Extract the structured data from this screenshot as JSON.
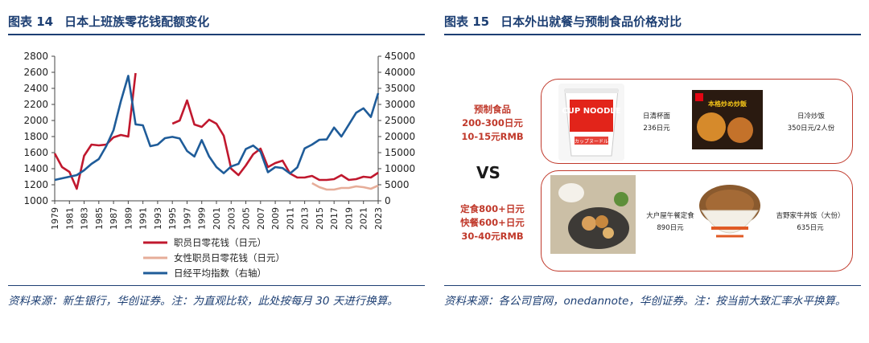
{
  "left": {
    "fig_label": "图表 14",
    "title": "日本上班族零花钱配额变化",
    "source": "资料来源：新生银行，华创证券。注：为直观比较，此处按每月 30 天进行换算。"
  },
  "right": {
    "fig_label": "图表 15",
    "title": "日本外出就餐与预制食品价格对比",
    "source": "资料来源：各公司官网，onedannote，华创证券。注：按当前大致汇率水平换算。",
    "vs": "VS",
    "category_top": [
      "预制食品",
      "200-300日元",
      "10-15元RMB"
    ],
    "category_bottom": [
      "定食800+日元",
      "快餐600+日元",
      "30-40元RMB"
    ],
    "products": [
      {
        "name": "日清杯面",
        "price": "236日元",
        "logo": "CUP NOODLE",
        "sub": "カップヌードル"
      },
      {
        "name": "日冷炒饭",
        "price": "350日元/2人份",
        "logo": "本格炒め炒飯"
      },
      {
        "name": "大户屋午餐定食",
        "price": "890日元"
      },
      {
        "name": "吉野家牛丼饭（大份）",
        "price": "635日元"
      }
    ]
  },
  "chart_data": {
    "type": "line",
    "x": [
      1979,
      1980,
      1981,
      1982,
      1983,
      1984,
      1985,
      1986,
      1987,
      1988,
      1989,
      1990,
      1991,
      1992,
      1993,
      1994,
      1995,
      1996,
      1997,
      1998,
      1999,
      2000,
      2001,
      2002,
      2003,
      2004,
      2005,
      2006,
      2007,
      2008,
      2009,
      2010,
      2011,
      2012,
      2013,
      2014,
      2015,
      2016,
      2017,
      2018,
      2019,
      2020,
      2021,
      2022,
      2023
    ],
    "xticks": [
      1979,
      1981,
      1983,
      1985,
      1987,
      1989,
      1991,
      1993,
      1995,
      1997,
      1999,
      2001,
      2003,
      2005,
      2007,
      2009,
      2011,
      2013,
      2015,
      2017,
      2019,
      2021,
      2023
    ],
    "ylim": [
      1000,
      2800
    ],
    "yticks": [
      1000,
      1200,
      1400,
      1600,
      1800,
      2000,
      2200,
      2400,
      2600,
      2800
    ],
    "y2lim": [
      0,
      45000
    ],
    "y2ticks": [
      0,
      5000,
      10000,
      15000,
      20000,
      25000,
      30000,
      35000,
      40000,
      45000
    ],
    "series": [
      {
        "name": "职员日零花钱（日元）",
        "axis": "left",
        "color": "#c0182e",
        "values": [
          1590,
          1420,
          1360,
          1150,
          1560,
          1700,
          1690,
          1700,
          1790,
          1820,
          1800,
          2590,
          null,
          null,
          null,
          null,
          1960,
          2000,
          2250,
          1950,
          1920,
          2010,
          1960,
          1810,
          1400,
          1320,
          1440,
          1580,
          1650,
          1420,
          1470,
          1500,
          1340,
          1290,
          1290,
          1310,
          1260,
          1260,
          1270,
          1320,
          1260,
          1270,
          1300,
          1290,
          1350
        ]
      },
      {
        "name": "女性职员日零花钱（日元）",
        "axis": "left",
        "color": "#e6ad99",
        "values": [
          null,
          null,
          null,
          null,
          null,
          null,
          null,
          null,
          null,
          null,
          null,
          null,
          null,
          null,
          null,
          null,
          null,
          null,
          null,
          null,
          null,
          null,
          null,
          null,
          null,
          null,
          null,
          null,
          null,
          null,
          null,
          null,
          null,
          null,
          null,
          1220,
          1170,
          1140,
          1140,
          1160,
          1160,
          1180,
          1170,
          1150,
          1190
        ]
      },
      {
        "name": "日经平均指数（右轴）",
        "axis": "right",
        "color": "#1f5c99",
        "values": [
          6500,
          7000,
          7500,
          8000,
          9500,
          11500,
          13000,
          17000,
          22000,
          31000,
          38900,
          23800,
          23500,
          17000,
          17500,
          19500,
          19900,
          19400,
          15500,
          13800,
          18900,
          13800,
          10500,
          8600,
          10700,
          11500,
          16100,
          17200,
          15300,
          8900,
          10500,
          10200,
          8500,
          10400,
          16300,
          17500,
          19000,
          19100,
          22800,
          20000,
          23700,
          27400,
          28800,
          26100,
          33500
        ]
      }
    ]
  }
}
